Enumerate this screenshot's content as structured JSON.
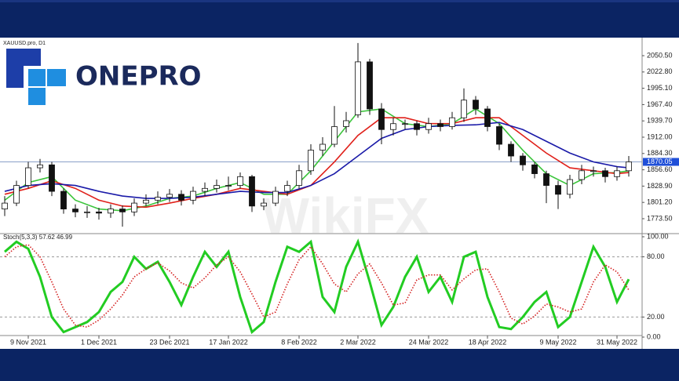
{
  "logo": "ONEPRO",
  "watermark": "WikiFX",
  "chart_data": [
    {
      "type": "candlestick",
      "title": "XAUUSD.pro, D1",
      "categories": [
        null,
        null,
        "9 Nov 2021",
        null,
        null,
        null,
        null,
        null,
        "1 Dec 2021",
        null,
        null,
        null,
        null,
        null,
        "23 Dec 2021",
        null,
        null,
        null,
        null,
        "17 Jan 2022",
        null,
        null,
        null,
        null,
        null,
        "8 Feb 2022",
        null,
        null,
        null,
        null,
        "2 Mar 2022",
        null,
        null,
        null,
        null,
        null,
        "24 Mar 2022",
        null,
        null,
        null,
        null,
        "18 Apr 2022",
        null,
        null,
        null,
        null,
        null,
        "9 May 2022",
        null,
        null,
        null,
        null,
        "31 May 2022",
        null
      ],
      "open": [
        1790,
        1800,
        1830,
        1860,
        1865,
        1820,
        1790,
        1785,
        1785,
        1783,
        1790,
        1785,
        1800,
        1805,
        1810,
        1815,
        1805,
        1820,
        1825,
        1830,
        1830,
        1845,
        1795,
        1800,
        1820,
        1830,
        1855,
        1890,
        1900,
        1930,
        1950,
        2040,
        1960,
        1925,
        1935,
        1935,
        1925,
        1935,
        1930,
        1945,
        1975,
        1960,
        1930,
        1900,
        1880,
        1865,
        1850,
        1830,
        1815,
        1840,
        1855,
        1855,
        1845,
        1855
      ],
      "high": [
        1812,
        1838,
        1870,
        1875,
        1870,
        1825,
        1798,
        1795,
        1792,
        1798,
        1796,
        1808,
        1815,
        1820,
        1824,
        1822,
        1828,
        1835,
        1840,
        1845,
        1852,
        1848,
        1808,
        1828,
        1838,
        1865,
        1900,
        1912,
        1965,
        1955,
        2072,
        2045,
        1970,
        1945,
        1942,
        1940,
        1945,
        1942,
        1955,
        1995,
        1982,
        1965,
        1935,
        1905,
        1885,
        1870,
        1855,
        1838,
        1848,
        1865,
        1862,
        1860,
        1862,
        1880
      ],
      "low": [
        1778,
        1795,
        1825,
        1852,
        1812,
        1782,
        1776,
        1775,
        1772,
        1775,
        1760,
        1778,
        1795,
        1798,
        1802,
        1796,
        1798,
        1812,
        1818,
        1822,
        1825,
        1785,
        1788,
        1795,
        1812,
        1825,
        1848,
        1880,
        1895,
        1920,
        1945,
        1950,
        1900,
        1915,
        1925,
        1915,
        1918,
        1922,
        1925,
        1938,
        1950,
        1922,
        1890,
        1870,
        1855,
        1842,
        1800,
        1790,
        1808,
        1832,
        1845,
        1835,
        1838,
        1845
      ],
      "close": [
        1800,
        1830,
        1860,
        1865,
        1820,
        1790,
        1785,
        1785,
        1783,
        1790,
        1785,
        1800,
        1805,
        1810,
        1815,
        1805,
        1820,
        1825,
        1830,
        1830,
        1845,
        1795,
        1800,
        1820,
        1830,
        1855,
        1890,
        1900,
        1930,
        1940,
        2040,
        1960,
        1925,
        1935,
        1935,
        1925,
        1935,
        1930,
        1945,
        1975,
        1960,
        1930,
        1900,
        1880,
        1865,
        1850,
        1830,
        1815,
        1840,
        1855,
        1855,
        1845,
        1855,
        1870.05
      ],
      "series": [
        {
          "color": "#3cc43c",
          "x": [
            0,
            2,
            4,
            6,
            8,
            10,
            12,
            14,
            16,
            18,
            20,
            22,
            24,
            26,
            28,
            30,
            32,
            34,
            36,
            38,
            40,
            42,
            44,
            46,
            48,
            50,
            52,
            53
          ],
          "values": [
            1805,
            1835,
            1845,
            1805,
            1790,
            1787,
            1795,
            1808,
            1812,
            1825,
            1835,
            1815,
            1815,
            1855,
            1905,
            1955,
            1960,
            1935,
            1930,
            1935,
            1960,
            1935,
            1890,
            1850,
            1830,
            1850,
            1852,
            1855
          ]
        },
        {
          "color": "#e0201a",
          "x": [
            0,
            2,
            4,
            6,
            8,
            10,
            12,
            14,
            16,
            18,
            20,
            22,
            24,
            26,
            28,
            30,
            32,
            34,
            36,
            38,
            40,
            42,
            44,
            46,
            48,
            50,
            52,
            53
          ],
          "values": [
            1815,
            1825,
            1838,
            1825,
            1805,
            1795,
            1793,
            1800,
            1808,
            1815,
            1825,
            1820,
            1815,
            1830,
            1870,
            1915,
            1945,
            1945,
            1935,
            1935,
            1945,
            1945,
            1915,
            1885,
            1860,
            1855,
            1850,
            1852
          ]
        },
        {
          "color": "#1a1aa8",
          "x": [
            0,
            2,
            4,
            6,
            8,
            10,
            12,
            14,
            16,
            18,
            20,
            22,
            24,
            26,
            28,
            30,
            32,
            34,
            36,
            38,
            40,
            42,
            44,
            46,
            48,
            50,
            52,
            53
          ],
          "values": [
            1820,
            1830,
            1833,
            1830,
            1820,
            1812,
            1808,
            1808,
            1810,
            1815,
            1820,
            1818,
            1818,
            1830,
            1850,
            1880,
            1910,
            1925,
            1930,
            1932,
            1933,
            1937,
            1925,
            1905,
            1885,
            1870,
            1862,
            1860
          ]
        }
      ],
      "last_price": 1870.05,
      "last_price_color": "#1f4fd8",
      "ylim": [
        1749.5,
        2078.5
      ],
      "yticks": [
        {
          "value": 1773.5,
          "label": "1773.50"
        },
        {
          "value": 1801.2,
          "label": "1801.20"
        },
        {
          "value": 1828.9,
          "label": "1828.90"
        },
        {
          "value": 1856.6,
          "label": "1856.60"
        },
        {
          "value": 1884.3,
          "label": "1884.30"
        },
        {
          "value": 1912,
          "label": "1912.00"
        },
        {
          "value": 1939.7,
          "label": "1939.70"
        },
        {
          "value": 1967.4,
          "label": "1967.40"
        },
        {
          "value": 1995.1,
          "label": "1995.10"
        },
        {
          "value": 2022.8,
          "label": "2022.80"
        },
        {
          "value": 2050.5,
          "label": "2050.50"
        }
      ]
    },
    {
      "type": "line",
      "title": "Stoch(5,3,3) 57.62 46.99",
      "series": [
        {
          "color": "#22cc22",
          "style": "solid",
          "values": [
            85,
            95,
            88,
            60,
            20,
            5,
            10,
            15,
            25,
            45,
            55,
            80,
            68,
            75,
            55,
            32,
            60,
            85,
            70,
            85,
            40,
            5,
            15,
            55,
            90,
            85,
            95,
            40,
            25,
            70,
            95,
            55,
            12,
            30,
            60,
            80,
            45,
            60,
            35,
            80,
            85,
            40,
            10,
            8,
            20,
            35,
            45,
            10,
            20,
            55,
            90,
            70,
            35,
            57.62
          ]
        },
        {
          "color": "#d42020",
          "style": "dotted",
          "values": [
            80,
            90,
            92,
            80,
            55,
            28,
            12,
            10,
            17,
            28,
            42,
            60,
            68,
            74,
            66,
            54,
            49,
            59,
            72,
            80,
            65,
            43,
            20,
            25,
            53,
            77,
            90,
            73,
            53,
            45,
            63,
            73,
            54,
            32,
            34,
            57,
            62,
            62,
            47,
            58,
            67,
            68,
            45,
            19,
            13,
            21,
            33,
            30,
            25,
            28,
            55,
            72,
            65,
            46.99
          ]
        }
      ],
      "ylim": [
        0,
        100
      ],
      "yticks": [
        {
          "value": 0,
          "label": "0.00"
        },
        {
          "value": 20,
          "label": "20.00"
        },
        {
          "value": 80,
          "label": "80.00"
        },
        {
          "value": 100,
          "label": "100.00"
        }
      ],
      "levels_dashed": [
        20,
        80
      ]
    }
  ]
}
